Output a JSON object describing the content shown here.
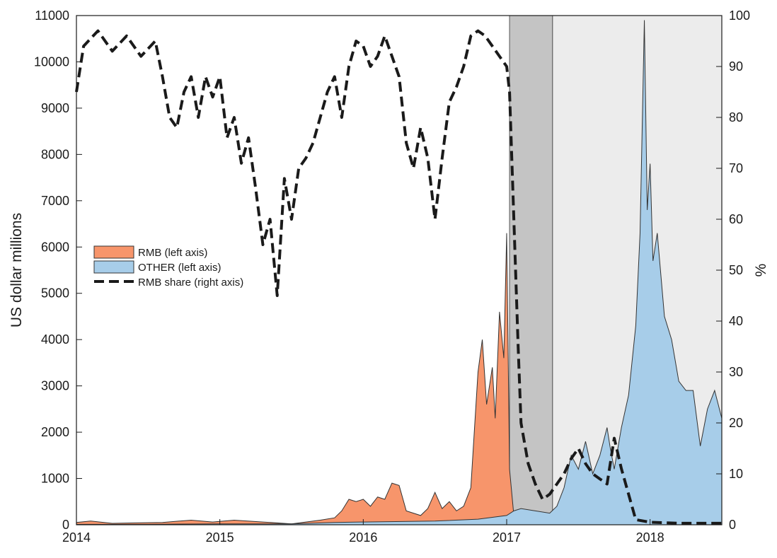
{
  "chart_data": {
    "type": "area",
    "xlabel": "",
    "ylabel_left": "US dollar millions",
    "ylabel_right": "%",
    "x_range": [
      2014.0,
      2018.5
    ],
    "ylim_left": [
      0,
      11000
    ],
    "ylim_right": [
      0,
      100
    ],
    "x_ticks": [
      2014,
      2015,
      2016,
      2017,
      2018
    ],
    "y_ticks_left": [
      0,
      1000,
      2000,
      3000,
      4000,
      5000,
      6000,
      7000,
      8000,
      9000,
      10000,
      11000
    ],
    "y_ticks_right": [
      0,
      10,
      20,
      30,
      40,
      50,
      60,
      70,
      80,
      90,
      100
    ],
    "grid": false,
    "legend_position": "middle-left",
    "shaded_periods": [
      {
        "start": 2017.02,
        "end": 2017.32,
        "color": "#c4c4c4"
      },
      {
        "start": 2017.32,
        "end": 2018.5,
        "color": "#ececec"
      }
    ],
    "series": [
      {
        "name": "RMB (left axis)",
        "kind": "area",
        "axis": "left",
        "color": "#f7956b",
        "x": [
          2014.0,
          2014.1,
          2014.25,
          2014.4,
          2014.6,
          2014.8,
          2014.95,
          2015.1,
          2015.3,
          2015.5,
          2015.7,
          2015.8,
          2015.85,
          2015.9,
          2015.95,
          2016.0,
          2016.05,
          2016.1,
          2016.15,
          2016.2,
          2016.25,
          2016.3,
          2016.35,
          2016.4,
          2016.45,
          2016.5,
          2016.55,
          2016.6,
          2016.65,
          2016.7,
          2016.75,
          2016.8,
          2016.83,
          2016.86,
          2016.9,
          2016.92,
          2016.95,
          2016.98,
          2017.0,
          2017.02,
          2017.05,
          2017.08,
          2017.15,
          2017.3,
          2017.45,
          2017.55,
          2017.6,
          2017.65,
          2017.7,
          2017.75,
          2017.8,
          2017.9,
          2018.0,
          2018.2,
          2018.5
        ],
        "values": [
          50,
          80,
          30,
          40,
          50,
          100,
          60,
          100,
          60,
          20,
          100,
          150,
          300,
          550,
          500,
          550,
          400,
          600,
          550,
          900,
          850,
          300,
          250,
          200,
          350,
          700,
          350,
          500,
          300,
          400,
          800,
          3300,
          4000,
          2600,
          3400,
          2300,
          4600,
          3600,
          6300,
          1200,
          200,
          80,
          40,
          60,
          60,
          120,
          100,
          150,
          250,
          300,
          150,
          30,
          10,
          5,
          5
        ]
      },
      {
        "name": "OTHER (left axis)",
        "kind": "area",
        "axis": "left",
        "color": "#a7cde9",
        "x": [
          2014.0,
          2014.5,
          2015.0,
          2015.5,
          2015.8,
          2016.0,
          2016.5,
          2016.8,
          2017.0,
          2017.05,
          2017.1,
          2017.2,
          2017.3,
          2017.35,
          2017.4,
          2017.45,
          2017.5,
          2017.55,
          2017.6,
          2017.65,
          2017.7,
          2017.72,
          2017.75,
          2017.8,
          2017.85,
          2017.9,
          2017.93,
          2017.96,
          2017.98,
          2018.0,
          2018.02,
          2018.05,
          2018.1,
          2018.15,
          2018.2,
          2018.25,
          2018.3,
          2018.35,
          2018.4,
          2018.45,
          2018.5
        ],
        "values": [
          10,
          10,
          20,
          20,
          50,
          60,
          80,
          120,
          200,
          300,
          350,
          300,
          250,
          400,
          800,
          1500,
          1200,
          1800,
          1100,
          1500,
          2100,
          1700,
          1200,
          2100,
          2800,
          4300,
          6300,
          10900,
          6800,
          7800,
          5700,
          6300,
          4500,
          4000,
          3100,
          2900,
          2900,
          1700,
          2500,
          2900,
          2300
        ]
      },
      {
        "name": "RMB share (right axis)",
        "kind": "line",
        "style": "dashed",
        "axis": "right",
        "color": "#1a1a1a",
        "x": [
          2014.0,
          2014.05,
          2014.15,
          2014.25,
          2014.35,
          2014.45,
          2014.55,
          2014.6,
          2014.65,
          2014.7,
          2014.75,
          2014.8,
          2014.85,
          2014.9,
          2014.95,
          2015.0,
          2015.05,
          2015.1,
          2015.15,
          2015.2,
          2015.25,
          2015.3,
          2015.35,
          2015.4,
          2015.45,
          2015.5,
          2015.55,
          2015.6,
          2015.65,
          2015.7,
          2015.75,
          2015.8,
          2015.85,
          2015.9,
          2015.95,
          2016.0,
          2016.05,
          2016.1,
          2016.15,
          2016.2,
          2016.25,
          2016.3,
          2016.35,
          2016.4,
          2016.45,
          2016.5,
          2016.55,
          2016.6,
          2016.65,
          2016.7,
          2016.75,
          2016.8,
          2016.85,
          2016.9,
          2016.95,
          2017.0,
          2017.02,
          2017.05,
          2017.08,
          2017.1,
          2017.15,
          2017.2,
          2017.25,
          2017.3,
          2017.35,
          2017.4,
          2017.45,
          2017.5,
          2017.55,
          2017.6,
          2017.65,
          2017.7,
          2017.75,
          2017.8,
          2017.9,
          2018.0,
          2018.2,
          2018.5
        ],
        "values": [
          85,
          94,
          97,
          93,
          96,
          92,
          95,
          88,
          80,
          78,
          85,
          88,
          80,
          88,
          84,
          88,
          76,
          80,
          71,
          76,
          66,
          55,
          60,
          45,
          68,
          60,
          70,
          72,
          75,
          80,
          85,
          88,
          80,
          90,
          95,
          94,
          90,
          92,
          96,
          92,
          88,
          75,
          70,
          78,
          72,
          60,
          72,
          83,
          86,
          90,
          96,
          97,
          96,
          94,
          92,
          90,
          85,
          60,
          35,
          20,
          12,
          8,
          5,
          6,
          8,
          10,
          13,
          15,
          12,
          10,
          9,
          8,
          17,
          11,
          1,
          0.5,
          0.3,
          0.3
        ]
      }
    ]
  }
}
